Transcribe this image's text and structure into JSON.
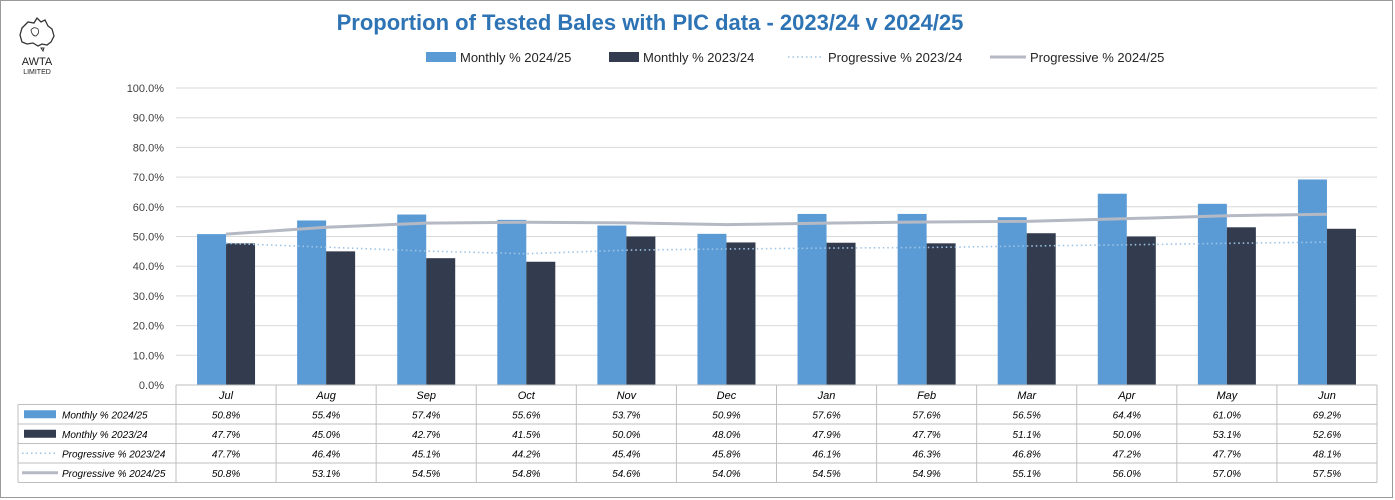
{
  "logo": {
    "line1": "AWTA",
    "line2": "LIMITED",
    "icon": "australia-map-icon"
  },
  "chart_data": {
    "type": "bar",
    "title": "Proportion of Tested Bales with PIC data - 2023/24 v 2024/25",
    "categories": [
      "Jul",
      "Aug",
      "Sep",
      "Oct",
      "Nov",
      "Dec",
      "Jan",
      "Feb",
      "Mar",
      "Apr",
      "May",
      "Jun"
    ],
    "ylim": [
      0,
      100
    ],
    "yticks": [
      "0.0%",
      "10.0%",
      "20.0%",
      "30.0%",
      "40.0%",
      "50.0%",
      "60.0%",
      "70.0%",
      "80.0%",
      "90.0%",
      "100.0%"
    ],
    "grid": true,
    "legend_position": "top",
    "series": [
      {
        "name": "Monthly % 2024/25",
        "kind": "bar",
        "color": "#5b9bd5",
        "values": [
          50.8,
          55.4,
          57.4,
          55.6,
          53.7,
          50.9,
          57.6,
          57.6,
          56.5,
          64.4,
          61.0,
          69.2
        ],
        "labels": [
          "50.8%",
          "55.4%",
          "57.4%",
          "55.6%",
          "53.7%",
          "50.9%",
          "57.6%",
          "57.6%",
          "56.5%",
          "64.4%",
          "61.0%",
          "69.2%"
        ]
      },
      {
        "name": "Monthly % 2023/24",
        "kind": "bar",
        "color": "#323c4e",
        "values": [
          47.7,
          45.0,
          42.7,
          41.5,
          50.0,
          48.0,
          47.9,
          47.7,
          51.1,
          50.0,
          53.1,
          52.6
        ],
        "labels": [
          "47.7%",
          "45.0%",
          "42.7%",
          "41.5%",
          "50.0%",
          "48.0%",
          "47.9%",
          "47.7%",
          "51.1%",
          "50.0%",
          "53.1%",
          "52.6%"
        ]
      },
      {
        "name": "Progressive % 2023/24",
        "kind": "line-dotted",
        "color": "#9dc3e6",
        "values": [
          47.7,
          46.4,
          45.1,
          44.2,
          45.4,
          45.8,
          46.1,
          46.3,
          46.8,
          47.2,
          47.7,
          48.1
        ],
        "labels": [
          "47.7%",
          "46.4%",
          "45.1%",
          "44.2%",
          "45.4%",
          "45.8%",
          "46.1%",
          "46.3%",
          "46.8%",
          "47.2%",
          "47.7%",
          "48.1%"
        ]
      },
      {
        "name": "Progressive % 2024/25",
        "kind": "line-solid",
        "color": "#b4b9c4",
        "values": [
          50.8,
          53.1,
          54.5,
          54.8,
          54.6,
          54.0,
          54.5,
          54.9,
          55.1,
          56.0,
          57.0,
          57.5
        ],
        "labels": [
          "50.8%",
          "53.1%",
          "54.5%",
          "54.8%",
          "54.6%",
          "54.0%",
          "54.5%",
          "54.9%",
          "55.1%",
          "56.0%",
          "57.0%",
          "57.5%"
        ]
      }
    ]
  }
}
